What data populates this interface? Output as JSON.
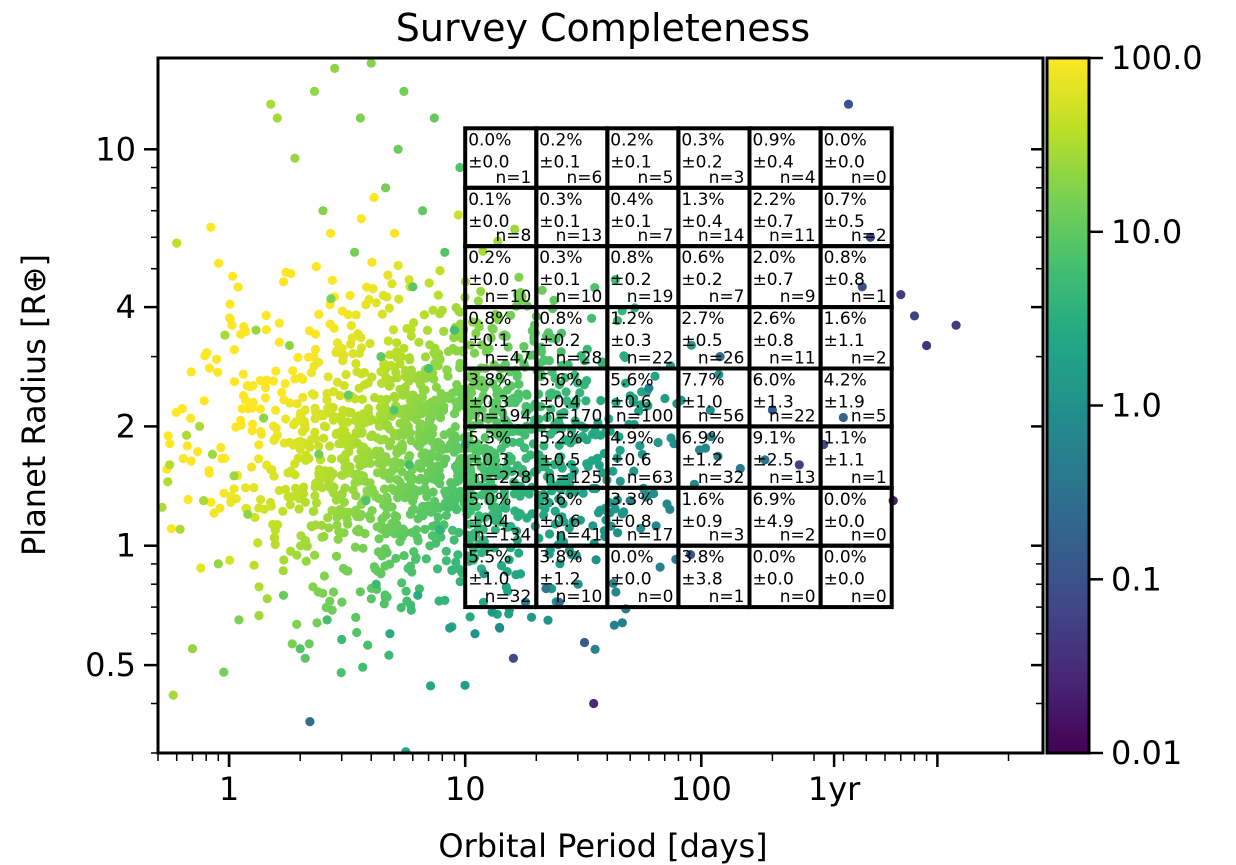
{
  "chart_data": {
    "type": "scatter",
    "title": "Survey Completeness",
    "xlabel": "Orbital Period [days]",
    "ylabel": "Planet Radius [R⊕]",
    "xscale": "log",
    "yscale": "log",
    "xlim": [
      0.5,
      2800
    ],
    "ylim": [
      0.3,
      17
    ],
    "x_ticks": [
      {
        "value": 1,
        "label": "1"
      },
      {
        "value": 10,
        "label": "10"
      },
      {
        "value": 100,
        "label": "100"
      },
      {
        "value": 365,
        "label": "1yr"
      }
    ],
    "y_ticks": [
      {
        "value": 0.5,
        "label": "0.5"
      },
      {
        "value": 1,
        "label": "1"
      },
      {
        "value": 2,
        "label": "2"
      },
      {
        "value": 4,
        "label": "4"
      },
      {
        "value": 10,
        "label": "10"
      }
    ],
    "colorbar": {
      "scale": "log",
      "range": [
        0.01,
        100
      ],
      "colormap": "viridis",
      "ticks": [
        "0.01",
        "0.1",
        "1.0",
        "10.0",
        "100.0"
      ]
    },
    "grid": {
      "period_edges": [
        10,
        20,
        40,
        80,
        160,
        320,
        640
      ],
      "radius_edges": [
        0.7,
        1.0,
        1.4,
        2.0,
        2.8,
        4.0,
        5.7,
        8.0,
        11.3
      ],
      "rows": [
        [
          {
            "pct": "0.0%",
            "err": "±0.0",
            "n": "n=1"
          },
          {
            "pct": "0.2%",
            "err": "±0.1",
            "n": "n=6"
          },
          {
            "pct": "0.2%",
            "err": "±0.1",
            "n": "n=5"
          },
          {
            "pct": "0.3%",
            "err": "±0.2",
            "n": "n=3"
          },
          {
            "pct": "0.9%",
            "err": "±0.4",
            "n": "n=4"
          },
          {
            "pct": "0.0%",
            "err": "±0.0",
            "n": "n=0"
          }
        ],
        [
          {
            "pct": "0.1%",
            "err": "±0.0",
            "n": "n=8"
          },
          {
            "pct": "0.3%",
            "err": "±0.1",
            "n": "n=13"
          },
          {
            "pct": "0.4%",
            "err": "±0.1",
            "n": "n=7"
          },
          {
            "pct": "1.3%",
            "err": "±0.4",
            "n": "n=14"
          },
          {
            "pct": "2.2%",
            "err": "±0.7",
            "n": "n=11"
          },
          {
            "pct": "0.7%",
            "err": "±0.5",
            "n": "n=2"
          }
        ],
        [
          {
            "pct": "0.2%",
            "err": "±0.0",
            "n": "n=10"
          },
          {
            "pct": "0.3%",
            "err": "±0.1",
            "n": "n=10"
          },
          {
            "pct": "0.8%",
            "err": "±0.2",
            "n": "n=19"
          },
          {
            "pct": "0.6%",
            "err": "±0.2",
            "n": "n=7"
          },
          {
            "pct": "2.0%",
            "err": "±0.7",
            "n": "n=9"
          },
          {
            "pct": "0.8%",
            "err": "±0.8",
            "n": "n=1"
          }
        ],
        [
          {
            "pct": "0.8%",
            "err": "±0.1",
            "n": "n=47"
          },
          {
            "pct": "0.8%",
            "err": "±0.2",
            "n": "n=28"
          },
          {
            "pct": "1.2%",
            "err": "±0.3",
            "n": "n=22"
          },
          {
            "pct": "2.7%",
            "err": "±0.5",
            "n": "n=26"
          },
          {
            "pct": "2.6%",
            "err": "±0.8",
            "n": "n=11"
          },
          {
            "pct": "1.6%",
            "err": "±1.1",
            "n": "n=2"
          }
        ],
        [
          {
            "pct": "3.8%",
            "err": "±0.3",
            "n": "n=194"
          },
          {
            "pct": "5.6%",
            "err": "±0.4",
            "n": "n=170"
          },
          {
            "pct": "5.6%",
            "err": "±0.6",
            "n": "n=100"
          },
          {
            "pct": "7.7%",
            "err": "±1.0",
            "n": "n=56"
          },
          {
            "pct": "6.0%",
            "err": "±1.3",
            "n": "n=22"
          },
          {
            "pct": "4.2%",
            "err": "±1.9",
            "n": "n=5"
          }
        ],
        [
          {
            "pct": "5.3%",
            "err": "±0.3",
            "n": "n=228"
          },
          {
            "pct": "5.2%",
            "err": "±0.5",
            "n": "n=125"
          },
          {
            "pct": "4.9%",
            "err": "±0.6",
            "n": "n=63"
          },
          {
            "pct": "6.9%",
            "err": "±1.2",
            "n": "n=32"
          },
          {
            "pct": "9.1%",
            "err": "±2.5",
            "n": "n=13"
          },
          {
            "pct": "1.1%",
            "err": "±1.1",
            "n": "n=1"
          }
        ],
        [
          {
            "pct": "5.0%",
            "err": "±0.4",
            "n": "n=134"
          },
          {
            "pct": "3.6%",
            "err": "±0.6",
            "n": "n=41"
          },
          {
            "pct": "3.3%",
            "err": "±0.8",
            "n": "n=17"
          },
          {
            "pct": "1.6%",
            "err": "±0.9",
            "n": "n=3"
          },
          {
            "pct": "6.9%",
            "err": "±4.9",
            "n": "n=2"
          },
          {
            "pct": "0.0%",
            "err": "±0.0",
            "n": "n=0"
          }
        ],
        [
          {
            "pct": "5.5%",
            "err": "±1.0",
            "n": "n=32"
          },
          {
            "pct": "3.8%",
            "err": "±1.2",
            "n": "n=10"
          },
          {
            "pct": "0.0%",
            "err": "±0.0",
            "n": "n=0"
          },
          {
            "pct": "3.8%",
            "err": "±3.8",
            "n": "n=1"
          },
          {
            "pct": "0.0%",
            "err": "±0.0",
            "n": "n=0"
          },
          {
            "pct": "0.0%",
            "err": "±0.0",
            "n": "n=0"
          }
        ]
      ]
    },
    "series": [
      {
        "points": [
          [
            0.52,
            1.25,
            30
          ],
          [
            0.55,
            1.45,
            33
          ],
          [
            0.56,
            1.6,
            35
          ],
          [
            0.58,
            0.42,
            28
          ],
          [
            0.6,
            5.8,
            40
          ],
          [
            0.62,
            1.1,
            30
          ],
          [
            0.66,
            1.9,
            32
          ],
          [
            0.7,
            0.55,
            22
          ],
          [
            0.75,
            2.0,
            30
          ],
          [
            0.78,
            1.3,
            28
          ],
          [
            0.85,
            1.7,
            26
          ],
          [
            0.9,
            0.9,
            22
          ],
          [
            0.95,
            0.48,
            15
          ],
          [
            0.96,
            3.4,
            28
          ],
          [
            1.05,
            1.5,
            24
          ],
          [
            1.1,
            0.65,
            16
          ],
          [
            1.2,
            1.2,
            20
          ],
          [
            1.3,
            3.5,
            24
          ],
          [
            1.4,
            2.1,
            20
          ],
          [
            1.5,
            13,
            30
          ],
          [
            1.6,
            12,
            28
          ],
          [
            1.7,
            0.75,
            12
          ],
          [
            1.8,
            3.2,
            20
          ],
          [
            1.9,
            9.5,
            24
          ],
          [
            2.0,
            0.55,
            8
          ],
          [
            2.1,
            0.52,
            9
          ],
          [
            2.2,
            0.36,
            0.3
          ],
          [
            2.3,
            14,
            22
          ],
          [
            2.4,
            1.7,
            14
          ],
          [
            2.5,
            7.0,
            18
          ],
          [
            2.6,
            0.65,
            6
          ],
          [
            2.7,
            4.2,
            16
          ],
          [
            2.8,
            16,
            20
          ],
          [
            3.0,
            0.58,
            5
          ],
          [
            3.2,
            2.4,
            12
          ],
          [
            3.4,
            5.5,
            14
          ],
          [
            3.6,
            12,
            16
          ],
          [
            3.8,
            1.3,
            8
          ],
          [
            4.0,
            16.5,
            18
          ],
          [
            4.2,
            0.8,
            5
          ],
          [
            4.4,
            3.0,
            10
          ],
          [
            4.6,
            8.0,
            14
          ],
          [
            4.8,
            0.6,
            3
          ],
          [
            5.0,
            2.2,
            8
          ],
          [
            5.2,
            10,
            12
          ],
          [
            5.5,
            14,
            14
          ],
          [
            5.8,
            1.6,
            6
          ],
          [
            6.0,
            4.5,
            9
          ],
          [
            6.3,
            0.75,
            3
          ],
          [
            6.6,
            7.0,
            10
          ],
          [
            7.0,
            2.8,
            7
          ],
          [
            7.4,
            12,
            11
          ],
          [
            7.8,
            1.1,
            4
          ],
          [
            8.2,
            5.5,
            8
          ],
          [
            8.6,
            0.62,
            1.8
          ],
          [
            9.0,
            3.5,
            6
          ],
          [
            9.5,
            9.0,
            8
          ],
          [
            10,
            1.8,
            4
          ],
          [
            11,
            0.6,
            1.0
          ],
          [
            12,
            0.85,
            1.5
          ],
          [
            13,
            0.68,
            1.2
          ],
          [
            14,
            0.62,
            0.8
          ],
          [
            16,
            0.52,
            0.08
          ],
          [
            18,
            0.72,
            0.5
          ],
          [
            22,
            0.78,
            0.4
          ],
          [
            25,
            0.72,
            0.2
          ],
          [
            32,
            0.57,
            0.12
          ],
          [
            35,
            0.4,
            0.03
          ],
          [
            50,
            1.3,
            0.5
          ],
          [
            60,
            2.5,
            0.6
          ],
          [
            90,
            0.95,
            0.1
          ],
          [
            120,
            3.0,
            0.3
          ],
          [
            200,
            2.2,
            0.15
          ],
          [
            260,
            1.6,
            0.06
          ],
          [
            330,
            1.8,
            0.08
          ],
          [
            420,
            13,
            0.1
          ],
          [
            480,
            4.5,
            0.09
          ],
          [
            520,
            6.0,
            0.08
          ],
          [
            650,
            1.3,
            0.02
          ],
          [
            700,
            4.3,
            0.05
          ],
          [
            800,
            3.8,
            0.06
          ],
          [
            900,
            3.2,
            0.04
          ],
          [
            1200,
            3.6,
            0.05
          ]
        ]
      }
    ],
    "cloud": {
      "count": 1500,
      "log10_period_mean": 0.85,
      "log10_period_sd": 0.45,
      "log10_radius_mean": 0.25,
      "log10_radius_sd": 0.19,
      "seed": 7
    }
  }
}
